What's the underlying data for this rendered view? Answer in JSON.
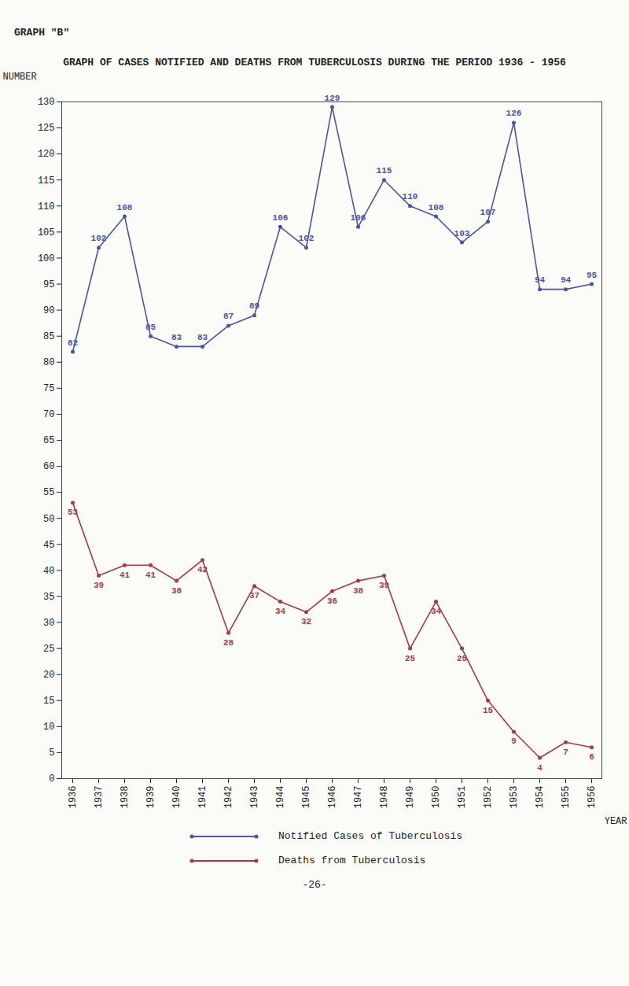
{
  "chart_data": {
    "type": "line",
    "header": "GRAPH \"B\"",
    "title": "GRAPH OF CASES NOTIFIED AND DEATHS FROM TUBERCULOSIS DURING THE PERIOD 1936 - 1956",
    "y_label": "NUMBER",
    "x_label": "YEAR",
    "page_number": "-26-",
    "categories": [
      "1936",
      "1937",
      "1938",
      "1939",
      "1940",
      "1941",
      "1942",
      "1943",
      "1944",
      "1945",
      "1946",
      "1947",
      "1948",
      "1949",
      "1950",
      "1951",
      "1952",
      "1953",
      "1954",
      "1955",
      "1956"
    ],
    "series": [
      {
        "name": "Notified Cases of Tuberculosis",
        "color": "#4a55a8",
        "marker": "circle",
        "values": [
          82,
          102,
          108,
          85,
          83,
          83,
          87,
          89,
          106,
          102,
          129,
          106,
          115,
          110,
          108,
          103,
          107,
          126,
          94,
          94,
          95
        ]
      },
      {
        "name": "Deaths from Tuberculosis",
        "color": "#a83a45",
        "marker": "circle",
        "values": [
          53,
          39,
          41,
          41,
          38,
          42,
          28,
          37,
          34,
          32,
          36,
          38,
          39,
          25,
          34,
          25,
          15,
          9,
          4,
          7,
          6
        ]
      }
    ],
    "ylim": [
      0,
      130
    ],
    "yticks": [
      0,
      5,
      10,
      15,
      20,
      25,
      30,
      35,
      40,
      45,
      50,
      55,
      60,
      65,
      70,
      75,
      80,
      85,
      90,
      95,
      100,
      105,
      110,
      115,
      120,
      125,
      130
    ],
    "data_labels": true,
    "grid": false
  }
}
